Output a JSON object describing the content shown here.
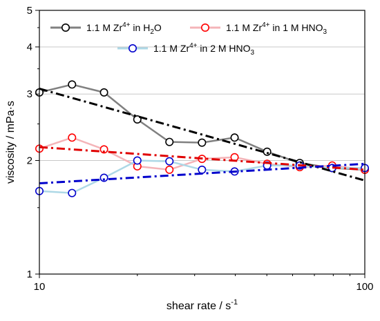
{
  "chart_data": {
    "type": "line",
    "x_scale": "log",
    "y_scale": "log",
    "xlim": [
      10,
      100
    ],
    "ylim": [
      1,
      5
    ],
    "xlabel_main": "shear rate / s",
    "xlabel_sup": "-1",
    "ylabel": "viscosity / mPa·s",
    "x_ticks": [
      {
        "value": 10,
        "label": "10"
      },
      {
        "value": 100,
        "label": "100"
      }
    ],
    "y_ticks": [
      {
        "value": 1,
        "label": "1"
      },
      {
        "value": 2,
        "label": "2"
      },
      {
        "value": 3,
        "label": "3"
      },
      {
        "value": 4,
        "label": "4"
      },
      {
        "value": 5,
        "label": "5"
      }
    ],
    "grid": "horizontal at major ticks",
    "legend_position": "top",
    "series": [
      {
        "name": "1.1 M Zr4+ in H2O",
        "legend": {
          "prefix": "1.1 M Zr",
          "sup": "4+",
          "middle": " in H",
          "sub": "2",
          "suffix": "O"
        },
        "line_color": "#808080",
        "marker_color": "#000000",
        "x": [
          10,
          12.6,
          15.8,
          20,
          25.1,
          31.6,
          39.8,
          50.1,
          63.1,
          79.4,
          100
        ],
        "y": [
          3.03,
          3.18,
          3.03,
          2.57,
          2.24,
          2.23,
          2.3,
          2.11,
          1.97,
          1.91,
          1.89
        ]
      },
      {
        "name": "1.1 M Zr4+ in 1 M HNO3",
        "legend": {
          "prefix": "1.1 M Zr",
          "sup": "4+",
          "middle": " in 1 M HNO",
          "sub": "3",
          "suffix": ""
        },
        "line_color": "#f4b4b8",
        "marker_color": "#ff0000",
        "x": [
          10,
          12.6,
          15.8,
          20,
          25.1,
          31.6,
          39.8,
          50.1,
          63.1,
          79.4,
          100
        ],
        "y": [
          2.15,
          2.3,
          2.14,
          1.93,
          1.89,
          2.02,
          2.04,
          1.96,
          1.92,
          1.94,
          1.89
        ]
      },
      {
        "name": "1.1 M Zr4+ in 2 M HNO3",
        "legend": {
          "prefix": "1.1 M Zr",
          "sup": "4+",
          "middle": " in 2 M HNO",
          "sub": "3",
          "suffix": ""
        },
        "line_color": "#add8e6",
        "marker_color": "#0000cc",
        "x": [
          10,
          12.6,
          15.8,
          20,
          25.1,
          31.6,
          39.8,
          50.1,
          63.1,
          79.4,
          100
        ],
        "y": [
          1.66,
          1.64,
          1.8,
          2.0,
          1.99,
          1.89,
          1.87,
          1.94,
          1.94,
          1.91,
          1.91
        ]
      }
    ],
    "fits": [
      {
        "color": "#000000",
        "x": [
          10,
          100
        ],
        "y": [
          3.1,
          1.77
        ]
      },
      {
        "color": "#e00000",
        "x": [
          10,
          100
        ],
        "y": [
          2.17,
          1.89
        ]
      },
      {
        "color": "#0000cc",
        "x": [
          10,
          100
        ],
        "y": [
          1.74,
          1.96
        ]
      }
    ]
  }
}
